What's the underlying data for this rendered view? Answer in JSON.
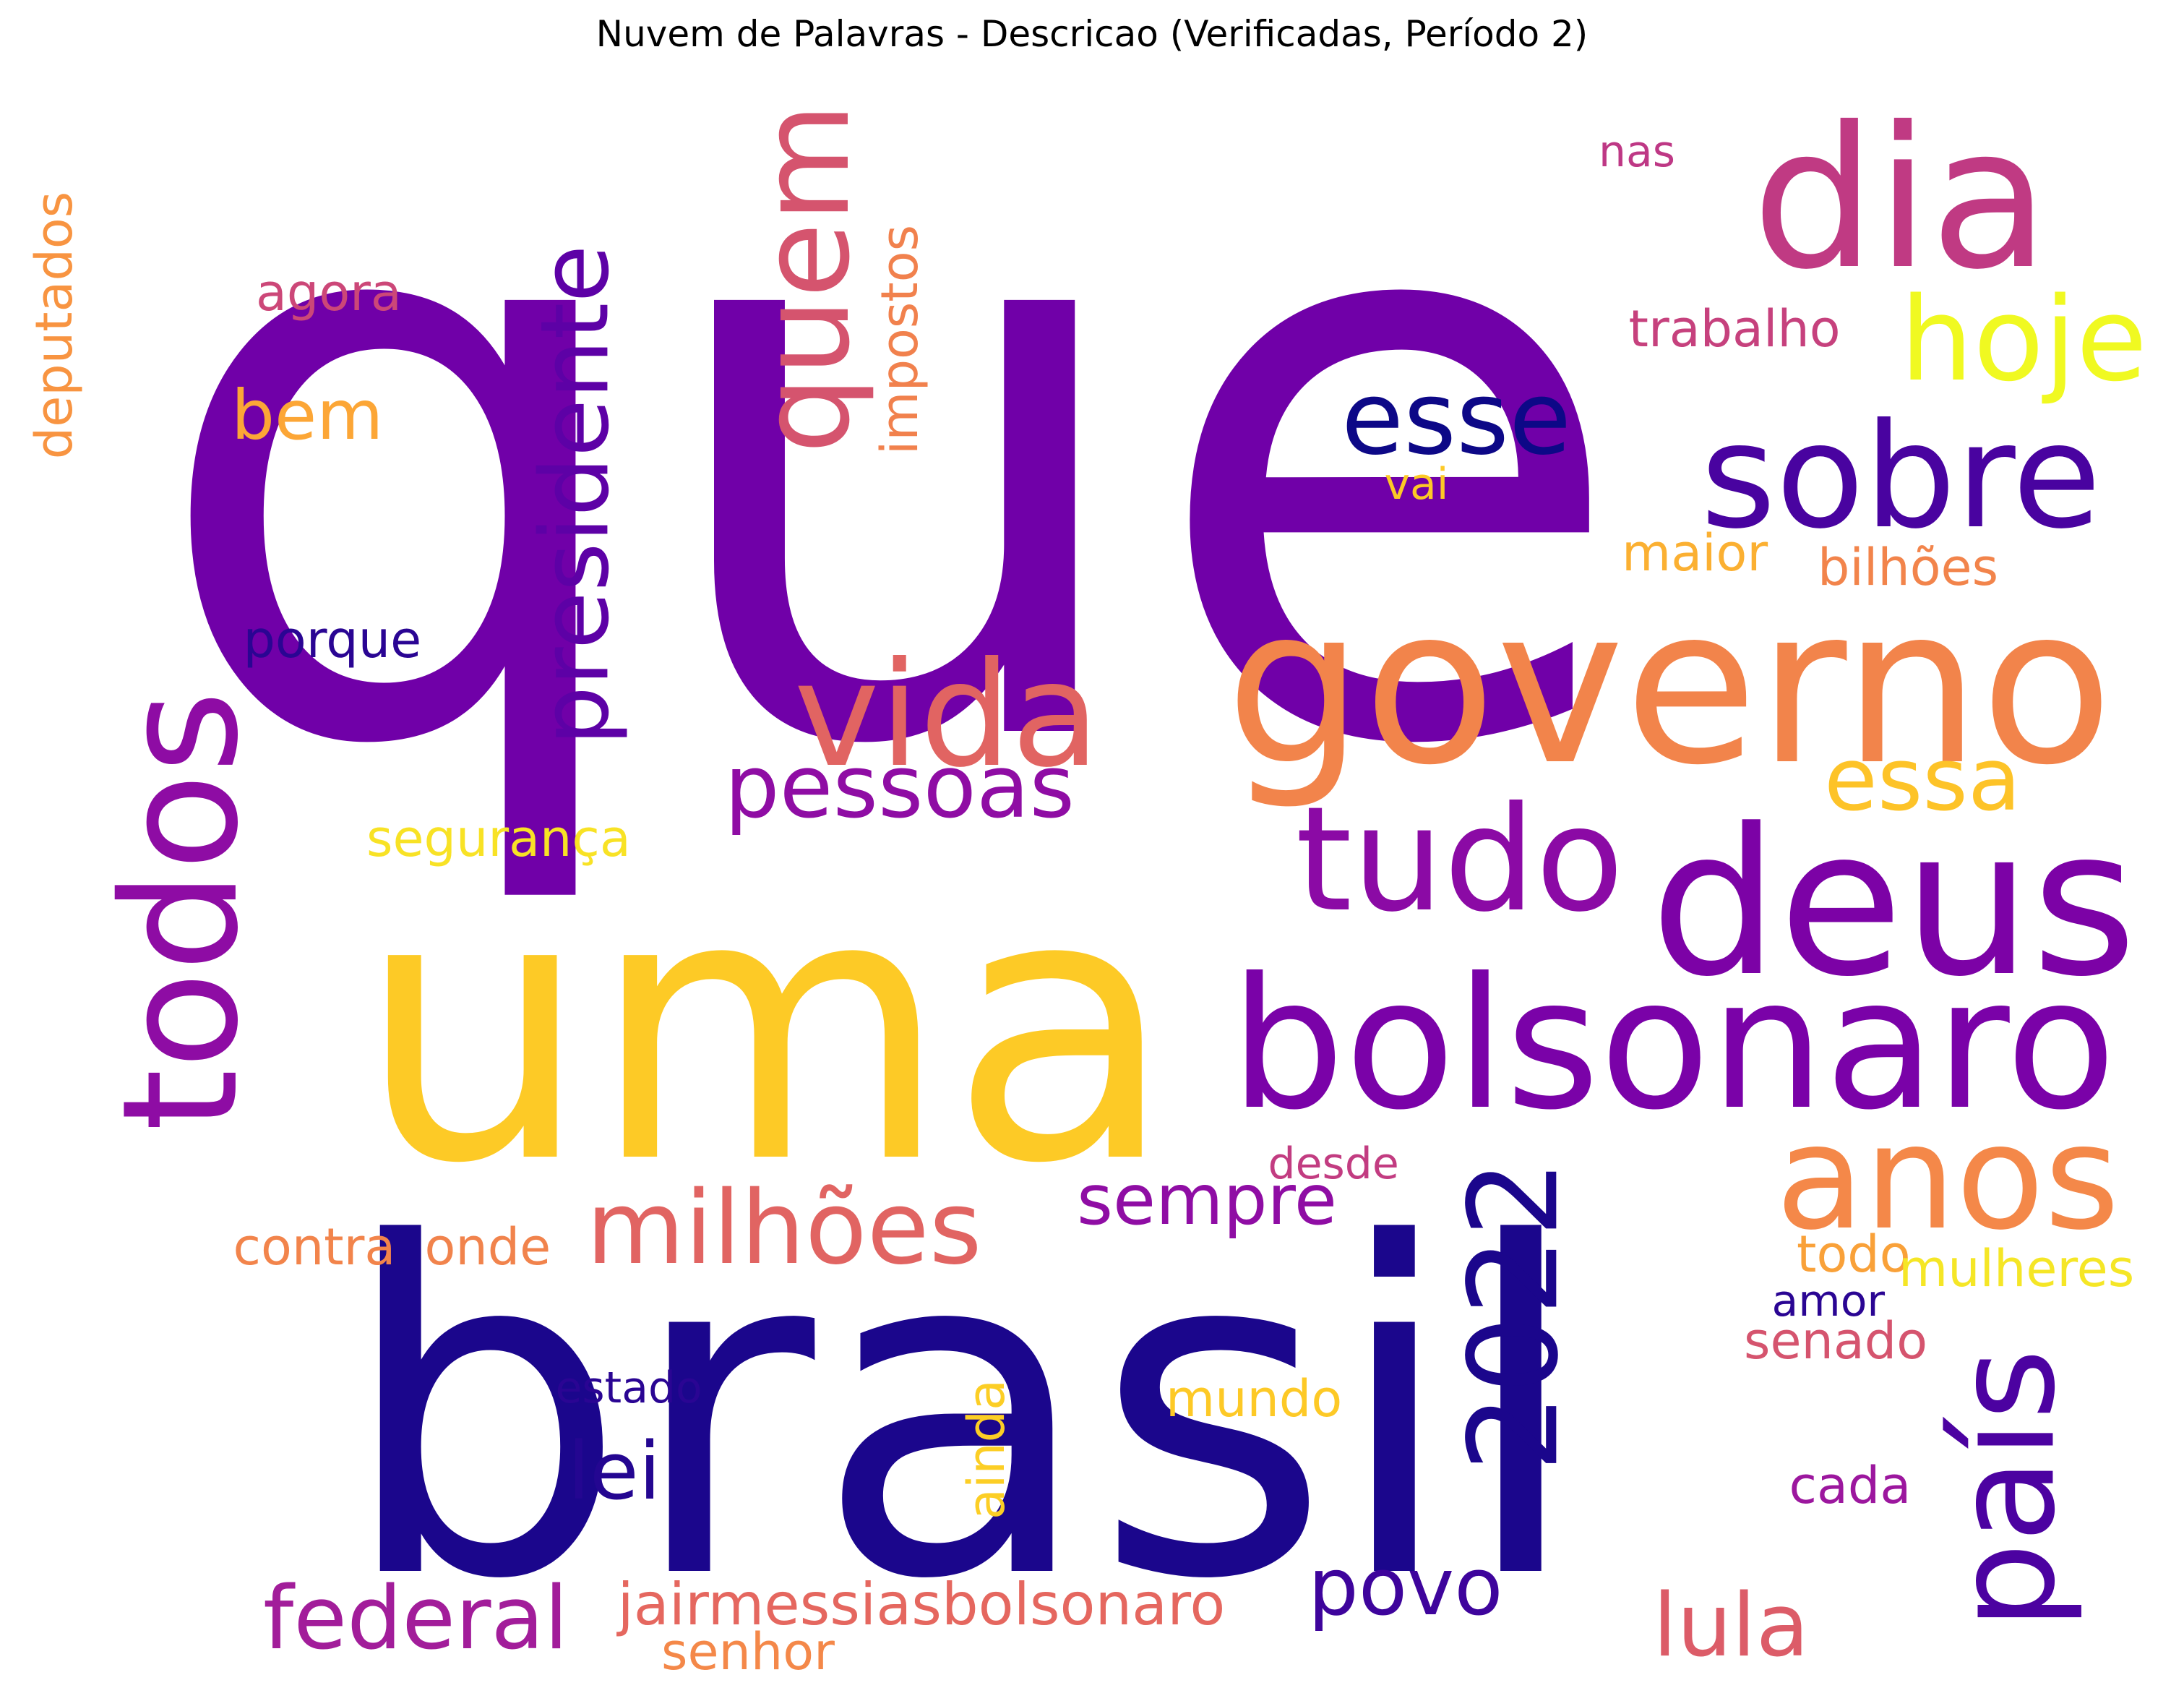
{
  "title": "Nuvem de Palavras - Descricao (Verificadas, Período 2)",
  "words": [
    {
      "text": "que",
      "color": "#7000A8"
    },
    {
      "text": "brasil",
      "color": "#1B068C"
    },
    {
      "text": "uma",
      "color": "#FDCA26"
    },
    {
      "text": "governo",
      "color": "#F2844B"
    },
    {
      "text": "bolsonaro",
      "color": "#7A02A8"
    },
    {
      "text": "dia",
      "color": "#C03A83"
    },
    {
      "text": "deus",
      "color": "#7C02A6"
    },
    {
      "text": "sobre",
      "color": "#4903A0"
    },
    {
      "text": "todos",
      "color": "#8E0CA4"
    },
    {
      "text": "presidente",
      "color": "#5D01A6"
    },
    {
      "text": "quem",
      "color": "#D5546E"
    },
    {
      "text": "vida",
      "color": "#E16462"
    },
    {
      "text": "tudo",
      "color": "#8B0AA5"
    },
    {
      "text": "país",
      "color": "#4C02A1"
    },
    {
      "text": "anos",
      "color": "#F48849"
    },
    {
      "text": "2022",
      "color": "#1B068C"
    },
    {
      "text": "hoje",
      "color": "#F0F921"
    },
    {
      "text": "esse",
      "color": "#0D0887"
    },
    {
      "text": "milhões",
      "color": "#E16462"
    },
    {
      "text": "pessoas",
      "color": "#8F0DA4"
    },
    {
      "text": "essa",
      "color": "#FDC328"
    },
    {
      "text": "bem",
      "color": "#FCA636"
    },
    {
      "text": "federal",
      "color": "#A21D9A"
    },
    {
      "text": "lula",
      "color": "#DC5C68"
    },
    {
      "text": "povo",
      "color": "#3E049C"
    },
    {
      "text": "sempre",
      "color": "#8F0DA4"
    },
    {
      "text": "lei",
      "color": "#240691"
    },
    {
      "text": "agora",
      "color": "#CC4778"
    },
    {
      "text": "jairmessiasbolsonaro",
      "color": "#E5675F"
    },
    {
      "text": "porque",
      "color": "#2A0593"
    },
    {
      "text": "deputados",
      "color": "#F89441"
    },
    {
      "text": "impostos",
      "color": "#F1814D"
    },
    {
      "text": "trabalho",
      "color": "#C6417D"
    },
    {
      "text": "nas",
      "color": "#BE3885"
    },
    {
      "text": "vai",
      "color": "#FDC926"
    },
    {
      "text": "maior",
      "color": "#FBB032"
    },
    {
      "text": "bilhões",
      "color": "#F2844B"
    },
    {
      "text": "segurança",
      "color": "#F8E225"
    },
    {
      "text": "contra",
      "color": "#F2844B"
    },
    {
      "text": "onde",
      "color": "#F1834C"
    },
    {
      "text": "desde",
      "color": "#C23C81"
    },
    {
      "text": "todo",
      "color": "#F9A139"
    },
    {
      "text": "mulheres",
      "color": "#F5E626"
    },
    {
      "text": "amor",
      "color": "#2A0593"
    },
    {
      "text": "senado",
      "color": "#D5546E"
    },
    {
      "text": "estado",
      "color": "#2A0593"
    },
    {
      "text": "mundo",
      "color": "#FDC926"
    },
    {
      "text": "ainda",
      "color": "#FCCE25"
    },
    {
      "text": "cada",
      "color": "#9C179E"
    },
    {
      "text": "senhor",
      "color": "#F48849"
    }
  ]
}
